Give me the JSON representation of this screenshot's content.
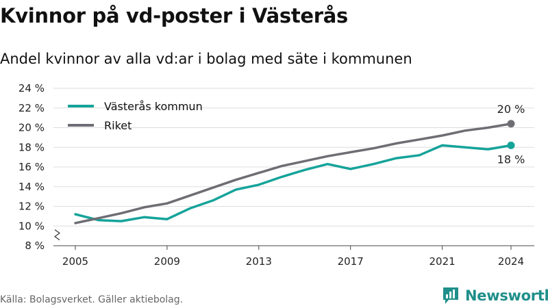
{
  "title": "Kvinnor på vd-poster i Västerås",
  "subtitle": "Andel kvinnor av alla vd:ar i bolag med säte i kommunen",
  "source": "Källa: Bolagsverket. Gäller aktiebolag.",
  "brand": {
    "name": "Newsworthy",
    "icon": "bar-chart-logo-icon",
    "color": "#1f8f8a"
  },
  "colors": {
    "vasteras": "#15a39a",
    "riket": "#6e6d74",
    "grid": "#dddddd"
  },
  "chart_data": {
    "type": "line",
    "x": [
      2005,
      2006,
      2007,
      2008,
      2009,
      2010,
      2011,
      2012,
      2013,
      2014,
      2015,
      2016,
      2017,
      2018,
      2019,
      2020,
      2021,
      2022,
      2023,
      2024
    ],
    "x_ticks": [
      2005,
      2009,
      2013,
      2017,
      2021,
      2024
    ],
    "x_tick_labels": [
      "2005",
      "2009",
      "2013",
      "2017",
      "2021",
      "2024"
    ],
    "ylim": [
      8,
      24
    ],
    "y_ticks": [
      8,
      10,
      12,
      14,
      16,
      18,
      20,
      22,
      24
    ],
    "y_tick_labels": [
      "8 %",
      "10 %",
      "12 %",
      "14 %",
      "16 %",
      "18 %",
      "20 %",
      "22 %",
      "24 %"
    ],
    "y_axis_break": true,
    "grid": "horizontal",
    "legend_position": "top-left",
    "series": [
      {
        "name": "Västerås kommun",
        "color": "#15a39a",
        "values": [
          11.2,
          10.6,
          10.5,
          10.9,
          10.7,
          11.8,
          12.6,
          13.7,
          14.2,
          15.0,
          15.7,
          16.3,
          15.8,
          16.3,
          16.9,
          17.2,
          18.2,
          18.0,
          17.8,
          18.2
        ],
        "end_label": "18 %"
      },
      {
        "name": "Riket",
        "color": "#6e6d74",
        "values": [
          10.3,
          10.8,
          11.3,
          11.9,
          12.3,
          13.1,
          13.9,
          14.7,
          15.4,
          16.1,
          16.6,
          17.1,
          17.5,
          17.9,
          18.4,
          18.8,
          19.2,
          19.7,
          20.0,
          20.4
        ],
        "end_label": "20 %"
      }
    ]
  }
}
